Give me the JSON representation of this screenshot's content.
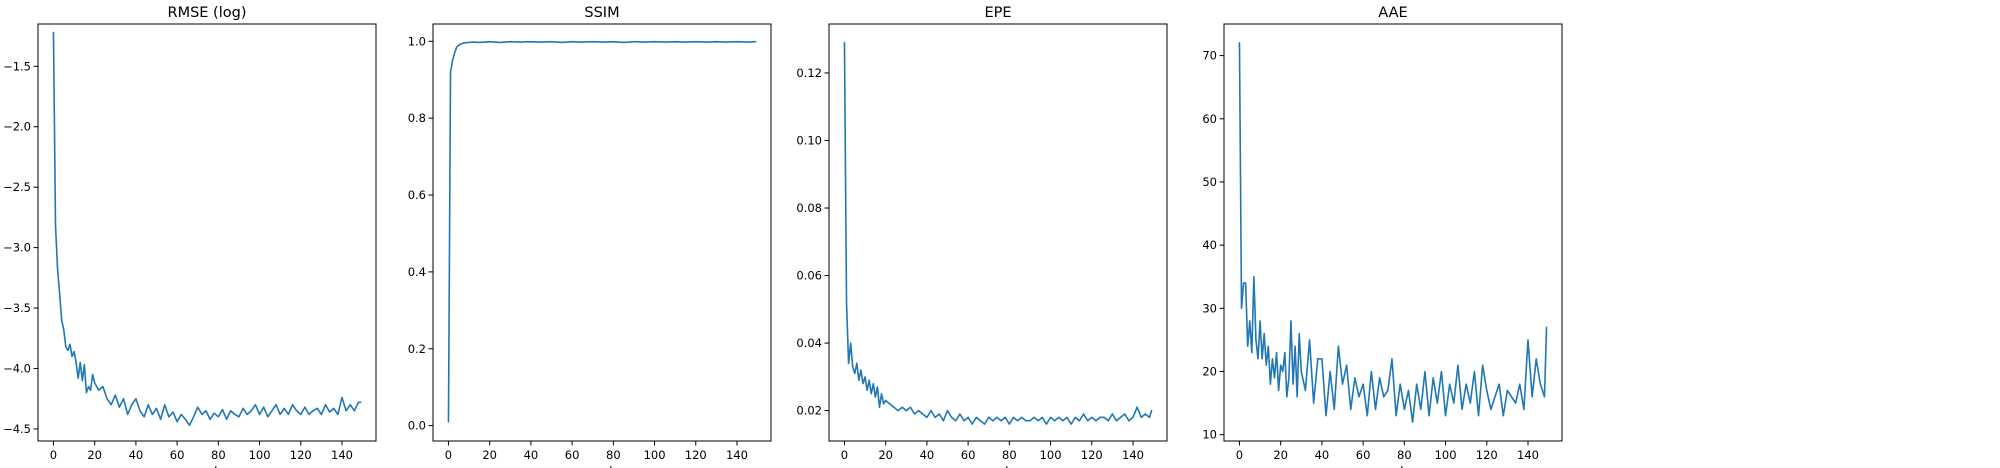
{
  "chart_data": [
    {
      "type": "line",
      "title": "RMSE (log)",
      "xlabel": "epochs",
      "ylabel": "",
      "xlim": [
        -7.5,
        156.5
      ],
      "ylim": [
        -4.6,
        -1.15
      ],
      "xticks": [
        0,
        20,
        40,
        60,
        80,
        100,
        120,
        140
      ],
      "yticks": [
        -4.5,
        -4.0,
        -3.5,
        -3.0,
        -2.5,
        -2.0,
        -1.5
      ],
      "ytick_labels": [
        "−4.5",
        "−4.0",
        "−3.5",
        "−3.0",
        "−2.5",
        "−2.0",
        "−1.5"
      ],
      "grid": false,
      "color": "#1f77b4",
      "series": [
        {
          "x": [
            0,
            1,
            2,
            3,
            4,
            5,
            6,
            7,
            8,
            9,
            10,
            11,
            12,
            13,
            14,
            15,
            16,
            17,
            18,
            19,
            20,
            22,
            24,
            26,
            28,
            30,
            32,
            34,
            36,
            38,
            40,
            42,
            44,
            46,
            48,
            50,
            52,
            54,
            56,
            58,
            60,
            62,
            64,
            66,
            68,
            70,
            72,
            74,
            76,
            78,
            80,
            82,
            84,
            86,
            88,
            90,
            92,
            94,
            96,
            98,
            100,
            102,
            104,
            106,
            108,
            110,
            112,
            114,
            116,
            118,
            120,
            122,
            124,
            126,
            128,
            130,
            132,
            134,
            136,
            138,
            140,
            142,
            144,
            146,
            148,
            149
          ],
          "y": [
            -1.22,
            -2.82,
            -3.18,
            -3.38,
            -3.6,
            -3.68,
            -3.82,
            -3.85,
            -3.8,
            -3.9,
            -3.86,
            -3.95,
            -4.08,
            -3.95,
            -4.1,
            -3.97,
            -4.2,
            -4.15,
            -4.18,
            -4.05,
            -4.12,
            -4.18,
            -4.15,
            -4.25,
            -4.3,
            -4.22,
            -4.32,
            -4.25,
            -4.38,
            -4.3,
            -4.25,
            -4.35,
            -4.4,
            -4.3,
            -4.38,
            -4.33,
            -4.42,
            -4.3,
            -4.4,
            -4.36,
            -4.44,
            -4.38,
            -4.42,
            -4.47,
            -4.4,
            -4.32,
            -4.38,
            -4.35,
            -4.42,
            -4.37,
            -4.4,
            -4.34,
            -4.42,
            -4.35,
            -4.38,
            -4.4,
            -4.33,
            -4.38,
            -4.35,
            -4.3,
            -4.38,
            -4.32,
            -4.4,
            -4.35,
            -4.3,
            -4.38,
            -4.33,
            -4.38,
            -4.3,
            -4.35,
            -4.38,
            -4.32,
            -4.38,
            -4.35,
            -4.33,
            -4.38,
            -4.3,
            -4.36,
            -4.33,
            -4.38,
            -4.24,
            -4.35,
            -4.3,
            -4.35,
            -4.28,
            -4.28
          ]
        }
      ]
    },
    {
      "type": "line",
      "title": "SSIM",
      "xlabel": "epochs",
      "ylabel": "",
      "xlim": [
        -7.5,
        156.5
      ],
      "ylim": [
        -0.04,
        1.045
      ],
      "xticks": [
        0,
        20,
        40,
        60,
        80,
        100,
        120,
        140
      ],
      "yticks": [
        0.0,
        0.2,
        0.4,
        0.6,
        0.8,
        1.0
      ],
      "ytick_labels": [
        "0.0",
        "0.2",
        "0.4",
        "0.6",
        "0.8",
        "1.0"
      ],
      "grid": false,
      "color": "#1f77b4",
      "series": [
        {
          "x": [
            0,
            1,
            2,
            3,
            4,
            5,
            6,
            7,
            8,
            10,
            12,
            15,
            20,
            25,
            30,
            35,
            40,
            45,
            50,
            55,
            60,
            65,
            70,
            75,
            80,
            85,
            90,
            95,
            100,
            105,
            110,
            115,
            120,
            125,
            130,
            135,
            140,
            145,
            149
          ],
          "y": [
            0.01,
            0.92,
            0.95,
            0.97,
            0.985,
            0.99,
            0.993,
            0.995,
            0.996,
            0.997,
            0.998,
            0.997,
            0.999,
            0.997,
            0.999,
            0.998,
            0.999,
            0.998,
            0.999,
            0.997,
            0.999,
            0.998,
            0.999,
            0.998,
            0.999,
            0.997,
            0.999,
            0.998,
            0.999,
            0.998,
            0.999,
            0.998,
            0.999,
            0.998,
            0.999,
            0.998,
            0.999,
            0.998,
            0.999
          ]
        }
      ]
    },
    {
      "type": "line",
      "title": "EPE",
      "xlabel": "epochs",
      "ylabel": "",
      "xlim": [
        -7.5,
        156.5
      ],
      "ylim": [
        0.011,
        0.1345
      ],
      "xticks": [
        0,
        20,
        40,
        60,
        80,
        100,
        120,
        140
      ],
      "yticks": [
        0.02,
        0.04,
        0.06,
        0.08,
        0.1,
        0.12
      ],
      "ytick_labels": [
        "0.02",
        "0.04",
        "0.06",
        "0.08",
        "0.10",
        "0.12"
      ],
      "grid": false,
      "color": "#1f77b4",
      "series": [
        {
          "x": [
            0,
            1,
            2,
            3,
            4,
            5,
            6,
            7,
            8,
            9,
            10,
            11,
            12,
            13,
            14,
            15,
            16,
            17,
            18,
            19,
            20,
            22,
            24,
            26,
            28,
            30,
            32,
            34,
            36,
            38,
            40,
            42,
            44,
            46,
            48,
            50,
            52,
            54,
            56,
            58,
            60,
            62,
            64,
            66,
            68,
            70,
            72,
            74,
            76,
            78,
            80,
            82,
            84,
            86,
            88,
            90,
            92,
            94,
            96,
            98,
            100,
            102,
            104,
            106,
            108,
            110,
            112,
            114,
            116,
            118,
            120,
            122,
            124,
            126,
            128,
            130,
            132,
            134,
            136,
            138,
            140,
            142,
            144,
            146,
            148,
            149
          ],
          "y": [
            0.129,
            0.052,
            0.034,
            0.04,
            0.033,
            0.031,
            0.034,
            0.029,
            0.032,
            0.028,
            0.03,
            0.026,
            0.029,
            0.025,
            0.028,
            0.024,
            0.027,
            0.021,
            0.025,
            0.022,
            0.023,
            0.022,
            0.021,
            0.02,
            0.021,
            0.02,
            0.021,
            0.019,
            0.02,
            0.019,
            0.018,
            0.02,
            0.018,
            0.019,
            0.017,
            0.02,
            0.018,
            0.017,
            0.019,
            0.017,
            0.018,
            0.016,
            0.018,
            0.017,
            0.016,
            0.018,
            0.017,
            0.018,
            0.017,
            0.018,
            0.016,
            0.018,
            0.017,
            0.018,
            0.017,
            0.017,
            0.018,
            0.017,
            0.018,
            0.016,
            0.018,
            0.017,
            0.018,
            0.017,
            0.018,
            0.016,
            0.018,
            0.017,
            0.019,
            0.017,
            0.018,
            0.017,
            0.018,
            0.018,
            0.017,
            0.019,
            0.017,
            0.018,
            0.019,
            0.017,
            0.018,
            0.021,
            0.018,
            0.019,
            0.018,
            0.02
          ]
        }
      ]
    },
    {
      "type": "line",
      "title": "AAE",
      "xlabel": "epochs",
      "ylabel": "",
      "xlim": [
        -7.5,
        156.5
      ],
      "ylim": [
        9,
        75
      ],
      "xticks": [
        0,
        20,
        40,
        60,
        80,
        100,
        120,
        140
      ],
      "yticks": [
        10,
        20,
        30,
        40,
        50,
        60,
        70
      ],
      "ytick_labels": [
        "10",
        "20",
        "30",
        "40",
        "50",
        "60",
        "70"
      ],
      "grid": false,
      "color": "#1f77b4",
      "series": [
        {
          "x": [
            0,
            1,
            2,
            3,
            4,
            5,
            6,
            7,
            8,
            9,
            10,
            11,
            12,
            13,
            14,
            15,
            16,
            17,
            18,
            19,
            20,
            21,
            22,
            23,
            24,
            25,
            26,
            27,
            28,
            29,
            30,
            32,
            34,
            36,
            38,
            40,
            42,
            44,
            46,
            48,
            50,
            52,
            54,
            56,
            58,
            60,
            62,
            64,
            66,
            68,
            70,
            72,
            74,
            76,
            78,
            80,
            82,
            84,
            86,
            88,
            90,
            92,
            94,
            96,
            98,
            100,
            102,
            104,
            106,
            108,
            110,
            112,
            114,
            116,
            118,
            120,
            122,
            124,
            126,
            128,
            130,
            132,
            134,
            136,
            138,
            140,
            142,
            144,
            146,
            148,
            149
          ],
          "y": [
            72,
            30,
            34,
            34,
            24,
            28,
            23,
            35,
            25,
            22,
            28,
            22,
            26,
            21,
            24,
            18,
            22,
            19,
            23,
            17,
            21,
            20,
            23,
            16,
            19,
            28,
            18,
            24,
            16,
            26,
            20,
            17,
            25,
            15,
            22,
            22,
            13,
            20,
            14,
            24,
            18,
            21,
            14,
            19,
            16,
            18,
            13,
            20,
            14,
            19,
            16,
            17,
            22,
            13,
            18,
            14,
            17,
            12,
            18,
            14,
            20,
            13,
            19,
            15,
            20,
            13,
            18,
            15,
            21,
            14,
            18,
            15,
            20,
            13,
            21,
            17,
            14,
            16,
            18,
            13,
            17,
            16,
            15,
            18,
            14,
            25,
            16,
            22,
            18,
            16,
            27
          ]
        }
      ]
    }
  ]
}
